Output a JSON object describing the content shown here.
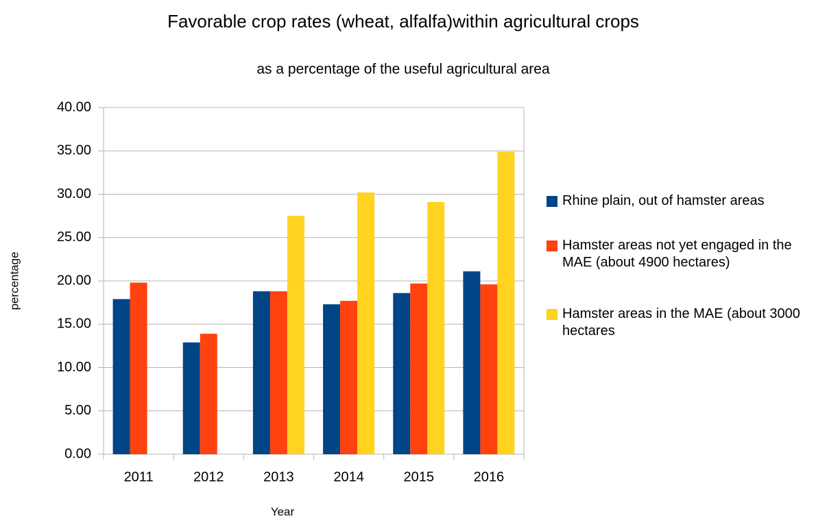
{
  "chart_data": {
    "type": "bar",
    "title": "Favorable crop rates (wheat, alfalfa)within agricultural crops",
    "subtitle": "as a percentage of the useful agricultural area",
    "x_label": "Year",
    "y_label": "percentage",
    "categories": [
      "2011",
      "2012",
      "2013",
      "2014",
      "2015",
      "2016"
    ],
    "series": [
      {
        "name": "Rhine plain, out of hamster areas",
        "color": "#004586",
        "values": [
          17.9,
          12.9,
          18.8,
          17.3,
          18.6,
          21.1
        ]
      },
      {
        "name": "Hamster areas not yet engaged in the MAE (about 4900 hectares)",
        "color": "#ff420e",
        "values": [
          19.8,
          13.9,
          18.8,
          17.7,
          19.7,
          19.6
        ]
      },
      {
        "name": "Hamster areas in the MAE (about 3000 hectares",
        "color": "#ffd320",
        "values": [
          null,
          null,
          27.5,
          30.2,
          29.1,
          34.9
        ]
      }
    ],
    "ylim": [
      0,
      40
    ],
    "yticks": [
      {
        "value": 0,
        "label": "0.00"
      },
      {
        "value": 5,
        "label": "5.00"
      },
      {
        "value": 10,
        "label": "10.00"
      },
      {
        "value": 15,
        "label": "15.00"
      },
      {
        "value": 20,
        "label": "20.00"
      },
      {
        "value": 25,
        "label": "25.00"
      },
      {
        "value": 30,
        "label": "30.00"
      },
      {
        "value": 35,
        "label": "35.00"
      },
      {
        "value": 40,
        "label": "40.00"
      }
    ],
    "grid": true,
    "legend": "right"
  }
}
